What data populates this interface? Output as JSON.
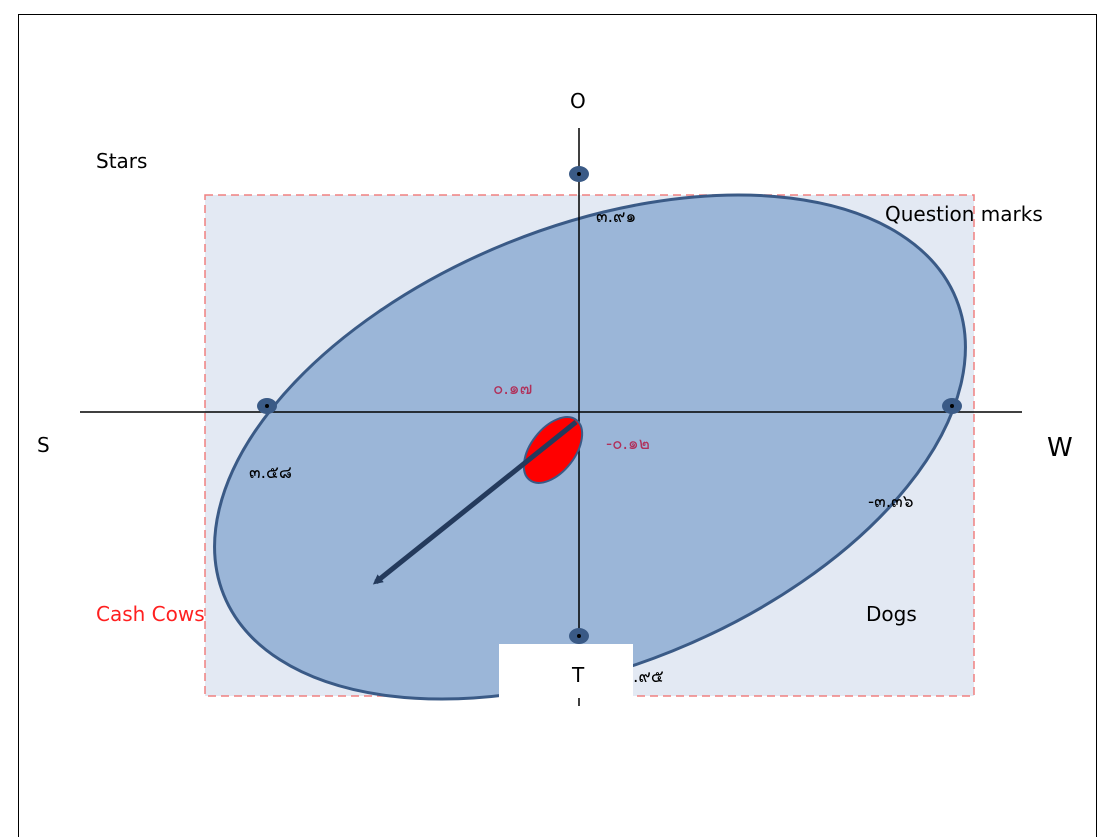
{
  "axes": {
    "top": "O",
    "bottom": "T",
    "left": "S",
    "right": "W"
  },
  "quadrants": {
    "top_left": "Stars",
    "top_right": "Question marks",
    "bottom_left": "Cash Cows",
    "bottom_right": "Dogs"
  },
  "values": {
    "top": "๓.๙๑",
    "left": "๓.๕๘",
    "right": "-๓.๓๖",
    "bottom": ".๙๕",
    "center_vertical": "๐.๑๗",
    "center_horizontal": "-๐.๑๒"
  },
  "colors": {
    "ellipse_fill": "#9bb6d8",
    "ellipse_stroke": "#3a5a86",
    "box_fill": "#e3e9f3",
    "box_stroke": "#f08080",
    "center_marker": "#ff0000",
    "arrow": "#243a5c",
    "highlight_red": "#ff2020",
    "value_red": "#b0305a"
  }
}
